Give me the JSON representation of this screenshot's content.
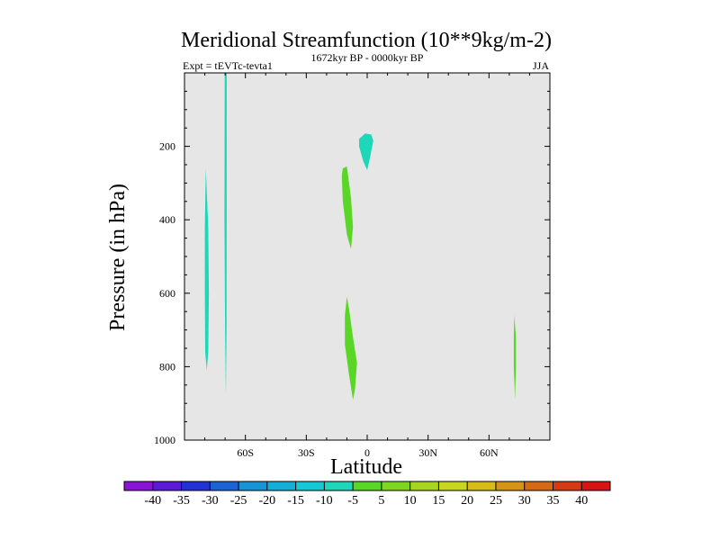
{
  "chart_data": {
    "type": "contour",
    "title": "Meridional Streamfunction (10**9kg/m-2)",
    "subtitle_left": "Expt = tEVTc-tevta1",
    "subtitle_center": "1672kyr BP - 0000kyr BP",
    "subtitle_right": "JJA",
    "xlabel": "Latitude",
    "ylabel": "Pressure (in hPa)",
    "xlim": [
      -90,
      90
    ],
    "ylim": [
      1000,
      0
    ],
    "x_ticks": [
      {
        "value": -60,
        "label": "60S"
      },
      {
        "value": -30,
        "label": "30S"
      },
      {
        "value": 0,
        "label": "0"
      },
      {
        "value": 30,
        "label": "30N"
      },
      {
        "value": 60,
        "label": "60N"
      }
    ],
    "y_ticks": [
      {
        "value": 200,
        "label": "200"
      },
      {
        "value": 400,
        "label": "400"
      },
      {
        "value": 600,
        "label": "600"
      },
      {
        "value": 800,
        "label": "800"
      },
      {
        "value": 1000,
        "label": "1000"
      }
    ],
    "background_color": "#e6e6e6",
    "colorbar": {
      "labels": [
        "-40",
        "-35",
        "-30",
        "-25",
        "-20",
        "-15",
        "-10",
        "-5",
        "5",
        "10",
        "15",
        "20",
        "25",
        "30",
        "35",
        "40"
      ],
      "colors": [
        "#8a14d6",
        "#5a1ad8",
        "#2332d6",
        "#1c64d6",
        "#1794d6",
        "#14afd6",
        "#14c8d6",
        "#1ed6b8",
        "#5ad626",
        "#7fd61e",
        "#a8d61e",
        "#c8d61e",
        "#d6bc14",
        "#d69414",
        "#d66a14",
        "#d63a14",
        "#d61414"
      ]
    },
    "regions": [
      {
        "name": "neg-band-80s",
        "color": "#1ed6b8",
        "points": [
          [
            -79.5,
            260
          ],
          [
            -78.3,
            420
          ],
          [
            -78,
            600
          ],
          [
            -78.3,
            760
          ],
          [
            -79,
            810
          ],
          [
            -79.8,
            760
          ],
          [
            -80,
            600
          ],
          [
            -80,
            420
          ]
        ]
      },
      {
        "name": "neg-band-70s",
        "color": "#1ed6b8",
        "points": [
          [
            -70.2,
            0
          ],
          [
            -69.2,
            0
          ],
          [
            -69.2,
            400
          ],
          [
            -69.3,
            700
          ],
          [
            -69.6,
            880
          ],
          [
            -70,
            700
          ],
          [
            -70.3,
            400
          ]
        ]
      },
      {
        "name": "neg-cell-equator-upper",
        "color": "#1ed6b8",
        "points": [
          [
            -4,
            180
          ],
          [
            -1,
            165
          ],
          [
            2,
            168
          ],
          [
            3,
            185
          ],
          [
            1,
            240
          ],
          [
            0,
            265
          ],
          [
            -2,
            240
          ],
          [
            -4,
            200
          ]
        ]
      },
      {
        "name": "pos-cell-10s-upper",
        "color": "#5ad626",
        "points": [
          [
            -12,
            260
          ],
          [
            -10,
            255
          ],
          [
            -8,
            340
          ],
          [
            -7,
            420
          ],
          [
            -8,
            480
          ],
          [
            -10,
            440
          ],
          [
            -12,
            350
          ],
          [
            -12.5,
            280
          ]
        ]
      },
      {
        "name": "pos-cell-10s-lower",
        "color": "#5ad626",
        "points": [
          [
            -10,
            610
          ],
          [
            -9,
            640
          ],
          [
            -7,
            720
          ],
          [
            -5,
            790
          ],
          [
            -6,
            860
          ],
          [
            -7,
            890
          ],
          [
            -9,
            820
          ],
          [
            -11,
            740
          ],
          [
            -11,
            660
          ]
        ]
      },
      {
        "name": "pos-band-73n",
        "color": "#5ad626",
        "points": [
          [
            72.5,
            660
          ],
          [
            73.3,
            720
          ],
          [
            73.3,
            800
          ],
          [
            72.8,
            890
          ],
          [
            72.2,
            800
          ],
          [
            72.2,
            720
          ]
        ]
      }
    ]
  }
}
